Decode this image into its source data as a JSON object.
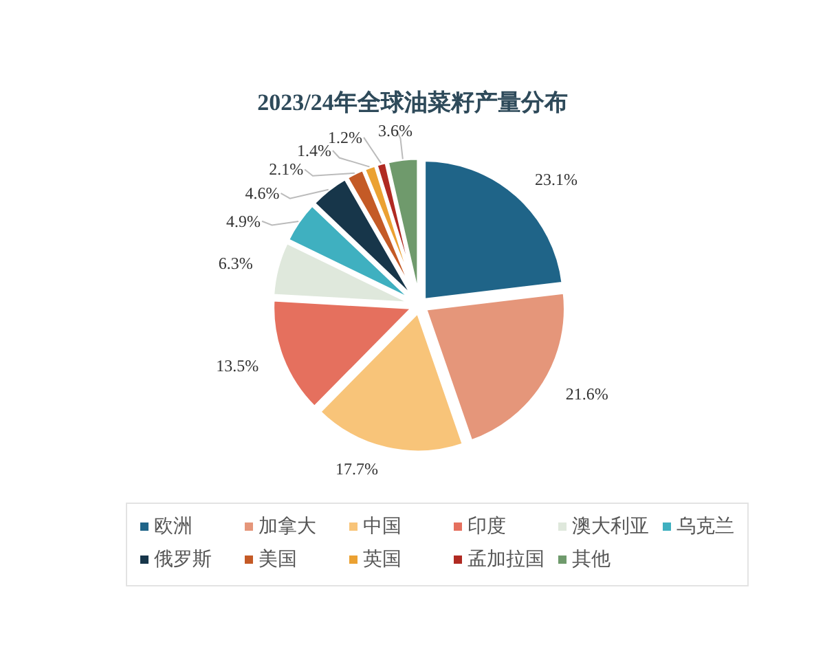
{
  "chart_data": {
    "type": "pie",
    "title": "2023/24年全球油菜籽产量分布",
    "categories": [
      "欧洲",
      "加拿大",
      "中国",
      "印度",
      "澳大利亚",
      "乌克兰",
      "俄罗斯",
      "美国",
      "英国",
      "孟加拉国",
      "其他"
    ],
    "values": [
      23.1,
      21.6,
      17.7,
      13.5,
      6.3,
      4.9,
      4.6,
      2.1,
      1.4,
      1.2,
      3.6
    ],
    "colors": [
      "#1f6488",
      "#e5967a",
      "#f8c479",
      "#e5705e",
      "#dfe8dc",
      "#3fb0c0",
      "#17364a",
      "#c45a26",
      "#eba132",
      "#b02a22",
      "#6f9a6c"
    ],
    "value_labels": [
      "23.1%",
      "21.6%",
      "17.7%",
      "13.5%",
      "6.3%",
      "4.9%",
      "4.6%",
      "2.1%",
      "1.4%",
      "1.2%",
      "3.6%"
    ],
    "legend": "bottom"
  }
}
